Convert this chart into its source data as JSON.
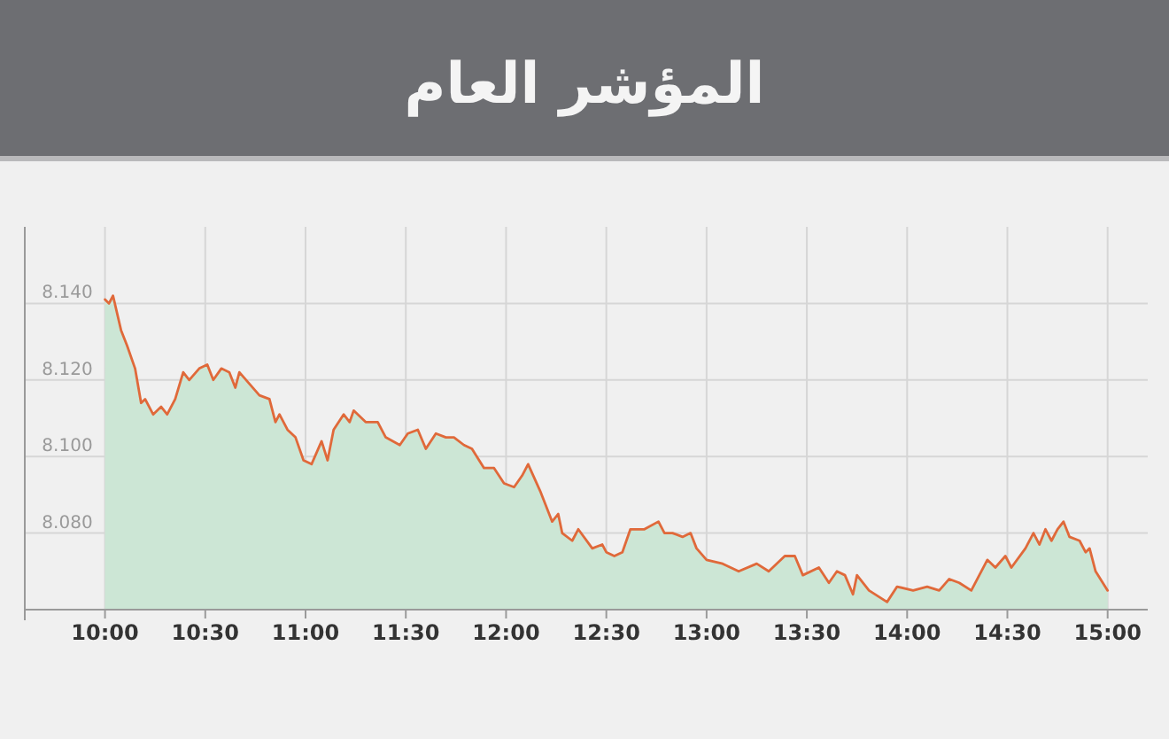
{
  "chart_data": {
    "type": "area",
    "title": "المؤشر العام",
    "grid": true,
    "xlim": [
      9.6,
      15.2
    ],
    "ylim": [
      8.06,
      8.16
    ],
    "xticks": [
      {
        "value": 10,
        "label": "10:00"
      },
      {
        "value": 10.5,
        "label": "10:30"
      },
      {
        "value": 11,
        "label": "11:00"
      },
      {
        "value": 11.5,
        "label": "11:30"
      },
      {
        "value": 12,
        "label": "12:00"
      },
      {
        "value": 12.5,
        "label": "12:30"
      },
      {
        "value": 13,
        "label": "13:00"
      },
      {
        "value": 13.5,
        "label": "13:30"
      },
      {
        "value": 14,
        "label": "14:00"
      },
      {
        "value": 14.5,
        "label": "14:30"
      },
      {
        "value": 15,
        "label": "15:00"
      }
    ],
    "yticks": [
      {
        "value": 8.08,
        "label": "8.080"
      },
      {
        "value": 8.1,
        "label": "8.100"
      },
      {
        "value": 8.12,
        "label": "8.120"
      },
      {
        "value": 8.14,
        "label": "8.140"
      }
    ],
    "series": [
      {
        "color": "#e0693a",
        "x": [
          10,
          10.02,
          10.04,
          10.08,
          10.11,
          10.15,
          10.18,
          10.2,
          10.24,
          10.28,
          10.31,
          10.35,
          10.39,
          10.42,
          10.47,
          10.51,
          10.54,
          10.58,
          10.62,
          10.65,
          10.67,
          10.72,
          10.77,
          10.82,
          10.85,
          10.87,
          10.91,
          10.95,
          10.99,
          11.03,
          11.08,
          11.11,
          11.14,
          11.19,
          11.22,
          11.24,
          11.3,
          11.36,
          11.4,
          11.47,
          11.51,
          11.56,
          11.6,
          11.65,
          11.7,
          11.74,
          11.79,
          11.83,
          11.89,
          11.94,
          11.99,
          12.04,
          12.08,
          12.11,
          12.17,
          12.23,
          12.26,
          12.28,
          12.33,
          12.36,
          12.43,
          12.48,
          12.5,
          12.54,
          12.58,
          12.62,
          12.69,
          12.76,
          12.79,
          12.83,
          12.88,
          12.92,
          12.95,
          13,
          13.08,
          13.16,
          13.25,
          13.31,
          13.39,
          13.44,
          13.48,
          13.56,
          13.61,
          13.65,
          13.69,
          13.73,
          13.75,
          13.81,
          13.9,
          13.95,
          14.03,
          14.1,
          14.16,
          14.21,
          14.26,
          14.32,
          14.4,
          14.44,
          14.49,
          14.52,
          14.59,
          14.63,
          14.66,
          14.69,
          14.72,
          14.75,
          14.78,
          14.81,
          14.86,
          14.89,
          14.91,
          14.94,
          15
        ],
        "values": [
          8.141,
          8.14,
          8.142,
          8.133,
          8.129,
          8.123,
          8.114,
          8.115,
          8.111,
          8.113,
          8.111,
          8.115,
          8.122,
          8.12,
          8.123,
          8.124,
          8.12,
          8.123,
          8.122,
          8.118,
          8.122,
          8.119,
          8.116,
          8.115,
          8.109,
          8.111,
          8.107,
          8.105,
          8.099,
          8.098,
          8.104,
          8.099,
          8.107,
          8.111,
          8.109,
          8.112,
          8.109,
          8.109,
          8.105,
          8.103,
          8.106,
          8.107,
          8.102,
          8.106,
          8.105,
          8.105,
          8.103,
          8.102,
          8.097,
          8.097,
          8.093,
          8.092,
          8.095,
          8.098,
          8.091,
          8.083,
          8.085,
          8.08,
          8.078,
          8.081,
          8.076,
          8.077,
          8.075,
          8.074,
          8.075,
          8.081,
          8.081,
          8.083,
          8.08,
          8.08,
          8.079,
          8.08,
          8.076,
          8.073,
          8.072,
          8.07,
          8.072,
          8.07,
          8.074,
          8.074,
          8.069,
          8.071,
          8.067,
          8.07,
          8.069,
          8.064,
          8.069,
          8.065,
          8.062,
          8.066,
          8.065,
          8.066,
          8.065,
          8.068,
          8.067,
          8.065,
          8.073,
          8.071,
          8.074,
          8.071,
          8.076,
          8.08,
          8.077,
          8.081,
          8.078,
          8.081,
          8.083,
          8.079,
          8.078,
          8.075,
          8.076,
          8.07,
          8.065
        ]
      }
    ]
  }
}
